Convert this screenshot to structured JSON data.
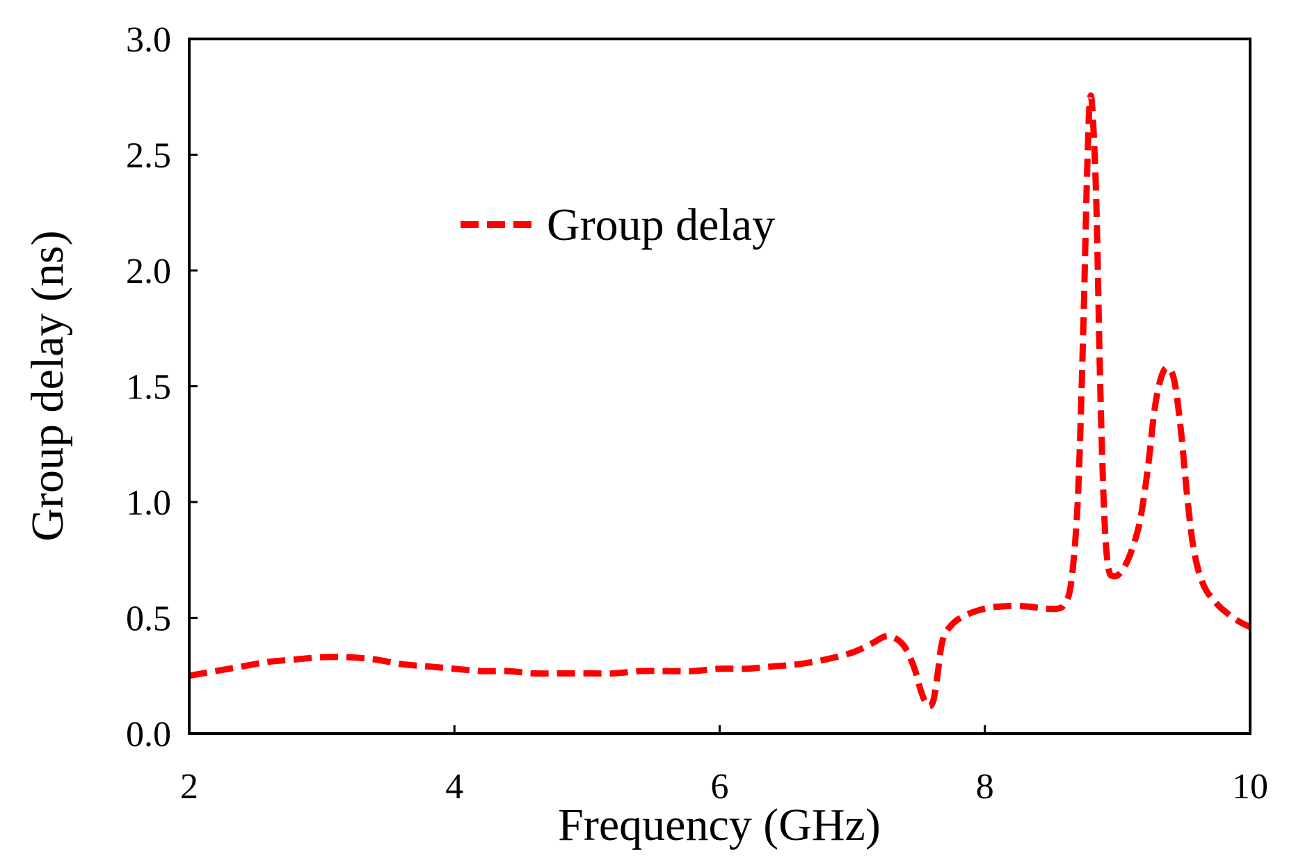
{
  "chart_data": {
    "type": "line",
    "title": "",
    "xlabel": "Frequency (GHz)",
    "ylabel": "Group delay (ns)",
    "xlim": [
      2,
      10
    ],
    "ylim": [
      0,
      3
    ],
    "x_ticks": [
      2,
      4,
      6,
      8,
      10
    ],
    "x_tick_labels": [
      "2",
      "4",
      "6",
      "8",
      "10"
    ],
    "y_ticks": [
      0,
      0.5,
      1,
      1.5,
      2,
      2.5,
      3
    ],
    "y_tick_labels": [
      "0.0",
      "0.5",
      "1.0",
      "1.5",
      "2.0",
      "2.5",
      "3.0"
    ],
    "grid": false,
    "legend_position": "upper-left-center",
    "series": [
      {
        "name": "Group delay",
        "color": "#ff0000",
        "line_style": "dashed",
        "points": [
          [
            2.0,
            0.25
          ],
          [
            2.2,
            0.27
          ],
          [
            2.4,
            0.29
          ],
          [
            2.6,
            0.31
          ],
          [
            2.8,
            0.32
          ],
          [
            3.0,
            0.33
          ],
          [
            3.2,
            0.33
          ],
          [
            3.4,
            0.32
          ],
          [
            3.6,
            0.3
          ],
          [
            3.8,
            0.29
          ],
          [
            4.0,
            0.28
          ],
          [
            4.2,
            0.27
          ],
          [
            4.4,
            0.27
          ],
          [
            4.6,
            0.26
          ],
          [
            4.8,
            0.26
          ],
          [
            5.0,
            0.26
          ],
          [
            5.2,
            0.26
          ],
          [
            5.4,
            0.27
          ],
          [
            5.6,
            0.27
          ],
          [
            5.8,
            0.27
          ],
          [
            6.0,
            0.28
          ],
          [
            6.2,
            0.28
          ],
          [
            6.4,
            0.29
          ],
          [
            6.6,
            0.3
          ],
          [
            6.8,
            0.32
          ],
          [
            7.0,
            0.35
          ],
          [
            7.15,
            0.39
          ],
          [
            7.25,
            0.42
          ],
          [
            7.33,
            0.41
          ],
          [
            7.4,
            0.37
          ],
          [
            7.47,
            0.28
          ],
          [
            7.52,
            0.18
          ],
          [
            7.57,
            0.12
          ],
          [
            7.61,
            0.14
          ],
          [
            7.64,
            0.24
          ],
          [
            7.68,
            0.4
          ],
          [
            7.75,
            0.47
          ],
          [
            7.85,
            0.51
          ],
          [
            8.0,
            0.54
          ],
          [
            8.15,
            0.55
          ],
          [
            8.3,
            0.55
          ],
          [
            8.45,
            0.54
          ],
          [
            8.55,
            0.54
          ],
          [
            8.6,
            0.56
          ],
          [
            8.65,
            0.65
          ],
          [
            8.7,
            1.0
          ],
          [
            8.74,
            1.7
          ],
          [
            8.77,
            2.4
          ],
          [
            8.79,
            2.72
          ],
          [
            8.81,
            2.7
          ],
          [
            8.84,
            2.3
          ],
          [
            8.87,
            1.5
          ],
          [
            8.9,
            0.95
          ],
          [
            8.93,
            0.72
          ],
          [
            8.97,
            0.68
          ],
          [
            9.03,
            0.7
          ],
          [
            9.1,
            0.78
          ],
          [
            9.17,
            0.92
          ],
          [
            9.23,
            1.15
          ],
          [
            9.28,
            1.4
          ],
          [
            9.33,
            1.54
          ],
          [
            9.38,
            1.58
          ],
          [
            9.43,
            1.52
          ],
          [
            9.48,
            1.3
          ],
          [
            9.53,
            1.0
          ],
          [
            9.58,
            0.78
          ],
          [
            9.65,
            0.64
          ],
          [
            9.75,
            0.56
          ],
          [
            9.85,
            0.51
          ],
          [
            9.93,
            0.48
          ],
          [
            10.0,
            0.46
          ]
        ]
      }
    ]
  }
}
